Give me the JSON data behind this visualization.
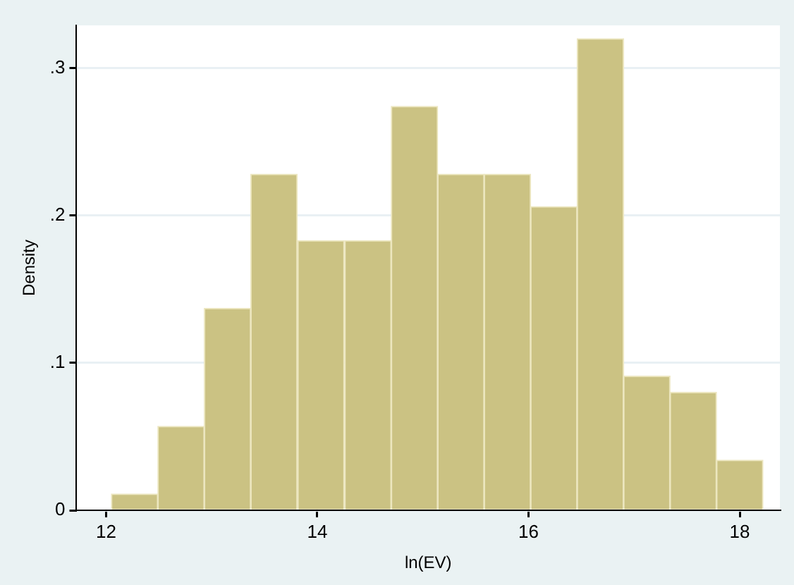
{
  "chart_data": {
    "type": "histogram",
    "xlabel": "ln(EV)",
    "ylabel": "Density",
    "bins": [
      12.05,
      12.49,
      12.93,
      13.37,
      13.81,
      14.26,
      14.7,
      15.14,
      15.58,
      16.02,
      16.46,
      16.9,
      17.34,
      17.78,
      18.22
    ],
    "values": [
      0.011,
      0.057,
      0.137,
      0.228,
      0.183,
      0.183,
      0.274,
      0.228,
      0.228,
      0.206,
      0.32,
      0.091,
      0.08,
      0.034
    ],
    "color": "#cbc283",
    "xlim": [
      11.72,
      18.38
    ],
    "xticks": [
      12,
      14,
      16,
      18
    ],
    "ylim": [
      0,
      0.329
    ],
    "yticks": [
      0,
      {
        "value": 0.1,
        "label": ".1"
      },
      {
        "value": 0.2,
        "label": ".2"
      },
      {
        "value": 0.3,
        "label": ".3"
      }
    ],
    "grid": "y"
  }
}
